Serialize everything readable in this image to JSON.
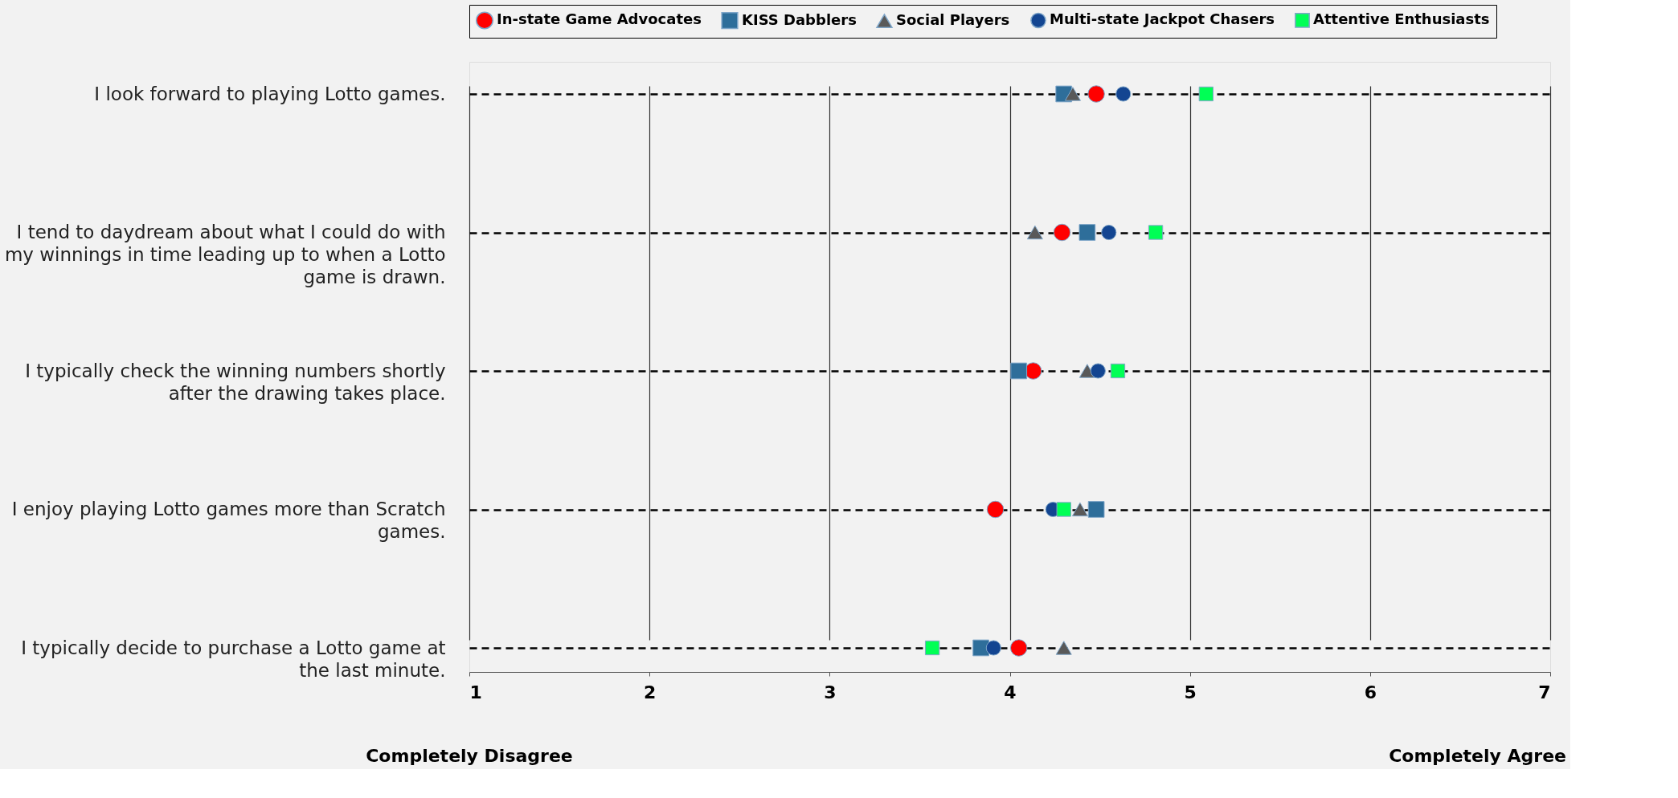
{
  "chart_data": {
    "type": "scatter",
    "categories": [
      "I look forward to playing Lotto games.",
      "I tend to daydream about what I could do with my winnings in time leading up to when a Lotto game is drawn.",
      "I typically check the winning numbers shortly after the drawing takes place.",
      "I enjoy playing Lotto games more than Scratch games.",
      "I typically decide to purchase a Lotto game at the last minute."
    ],
    "orientation": "horizontal",
    "series": [
      {
        "name": "In-state Game Advocates",
        "color": "#ff0000",
        "marker": "circle",
        "values": [
          4.48,
          4.29,
          4.13,
          3.92,
          4.05
        ]
      },
      {
        "name": "KISS Dabblers",
        "color": "#2e6e9a",
        "marker": "square",
        "values": [
          4.3,
          4.43,
          4.05,
          4.48,
          3.84
        ]
      },
      {
        "name": "Social Players",
        "color": "#595959",
        "marker": "triangle",
        "values": [
          4.35,
          4.14,
          4.43,
          4.39,
          4.3
        ]
      },
      {
        "name": "Multi-state Jackpot Chasers",
        "color": "#134591",
        "marker": "circle",
        "values": [
          4.63,
          4.55,
          4.49,
          4.24,
          3.91
        ]
      },
      {
        "name": "Attentive Enthusiasts",
        "color": "#00ff55",
        "marker": "square",
        "values": [
          5.09,
          4.81,
          4.6,
          4.3,
          3.57
        ]
      }
    ],
    "xlim": [
      1,
      7
    ],
    "xticks": [
      1,
      2,
      3,
      4,
      5,
      6,
      7
    ],
    "grid": true,
    "legend": "top",
    "annotations": [
      "Completely Disagree",
      "Completely Agree"
    ]
  }
}
